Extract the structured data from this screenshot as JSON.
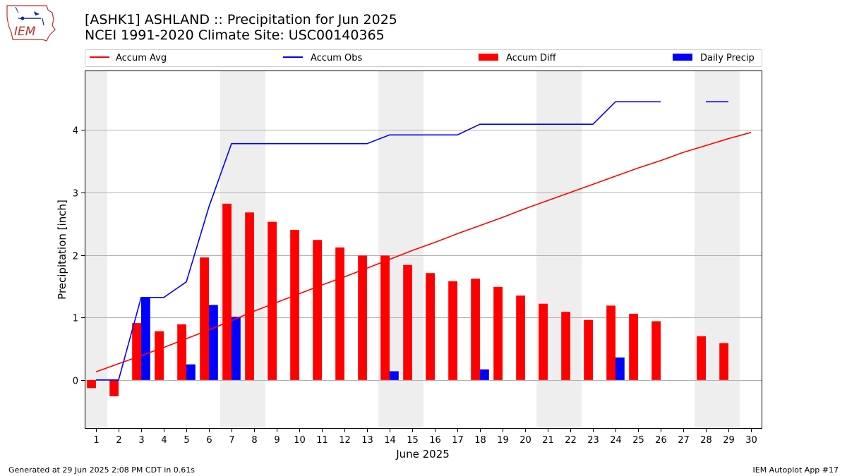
{
  "header": {
    "title_line1": "[ASHK1] ASHLAND :: Precipitation for Jun 2025",
    "title_line2": "NCEI 1991-2020 Climate Site: USC00140365",
    "logo_text": "IEM"
  },
  "footer": {
    "generated": "Generated at 29 Jun 2025 2:08 PM CDT in 0.61s",
    "app": "IEM Autoplot App #17"
  },
  "colors": {
    "accum_avg": "#ff0000",
    "accum_obs": "#0000ff",
    "accum_diff": "#ff0000",
    "daily_precip": "#0000ff",
    "weekend_shade": "#eeeeee",
    "grid": "#b0b0b0"
  },
  "chart_data": {
    "type": "bar",
    "title": "[ASHK1] ASHLAND :: Precipitation for Jun 2025",
    "subtitle": "NCEI 1991-2020 Climate Site: USC00140365",
    "xlabel": "June 2025",
    "ylabel": "Precipitation [inch]",
    "x": [
      1,
      2,
      3,
      4,
      5,
      6,
      7,
      8,
      9,
      10,
      11,
      12,
      13,
      14,
      15,
      16,
      17,
      18,
      19,
      20,
      21,
      22,
      23,
      24,
      25,
      26,
      27,
      28,
      29,
      30
    ],
    "xlim": [
      0.5,
      30.5
    ],
    "ylim": [
      -0.78,
      4.95
    ],
    "yticks": [
      0,
      1,
      2,
      3,
      4
    ],
    "grid": "horizontal",
    "legend_placement": "top",
    "shaded_days": [
      1,
      7,
      8,
      14,
      15,
      21,
      22,
      28,
      29
    ],
    "series": [
      {
        "name": "Accum Avg",
        "kind": "line",
        "values": [
          0.13,
          0.26,
          0.39,
          0.52,
          0.66,
          0.8,
          0.95,
          1.1,
          1.24,
          1.38,
          1.52,
          1.65,
          1.79,
          1.93,
          2.07,
          2.2,
          2.34,
          2.47,
          2.6,
          2.74,
          2.87,
          3.0,
          3.13,
          3.26,
          3.39,
          3.51,
          3.64,
          3.75,
          3.86,
          3.96
        ]
      },
      {
        "name": "Accum Obs",
        "kind": "line",
        "values": [
          0.0,
          0.0,
          1.32,
          1.32,
          1.57,
          2.77,
          3.78,
          3.78,
          3.78,
          3.78,
          3.78,
          3.78,
          3.78,
          3.92,
          3.92,
          3.92,
          3.92,
          4.09,
          4.09,
          4.09,
          4.09,
          4.09,
          4.09,
          4.45,
          4.45,
          4.45,
          null,
          4.45,
          4.45,
          null
        ]
      },
      {
        "name": "Accum Diff",
        "kind": "bar",
        "values": [
          -0.13,
          -0.26,
          0.91,
          0.78,
          0.89,
          1.96,
          2.82,
          2.68,
          2.53,
          2.4,
          2.24,
          2.12,
          1.99,
          1.99,
          1.84,
          1.71,
          1.58,
          1.62,
          1.49,
          1.35,
          1.22,
          1.09,
          0.96,
          1.19,
          1.06,
          0.94,
          null,
          0.7,
          0.59,
          null
        ]
      },
      {
        "name": "Daily Precip",
        "kind": "bar",
        "values": [
          0,
          0,
          1.32,
          0,
          0.25,
          1.2,
          1.01,
          0,
          0,
          0,
          0,
          0,
          0,
          0.14,
          0,
          0,
          0,
          0.17,
          0,
          0,
          0,
          0,
          0,
          0.36,
          0,
          0,
          null,
          0,
          0,
          null
        ]
      }
    ]
  }
}
